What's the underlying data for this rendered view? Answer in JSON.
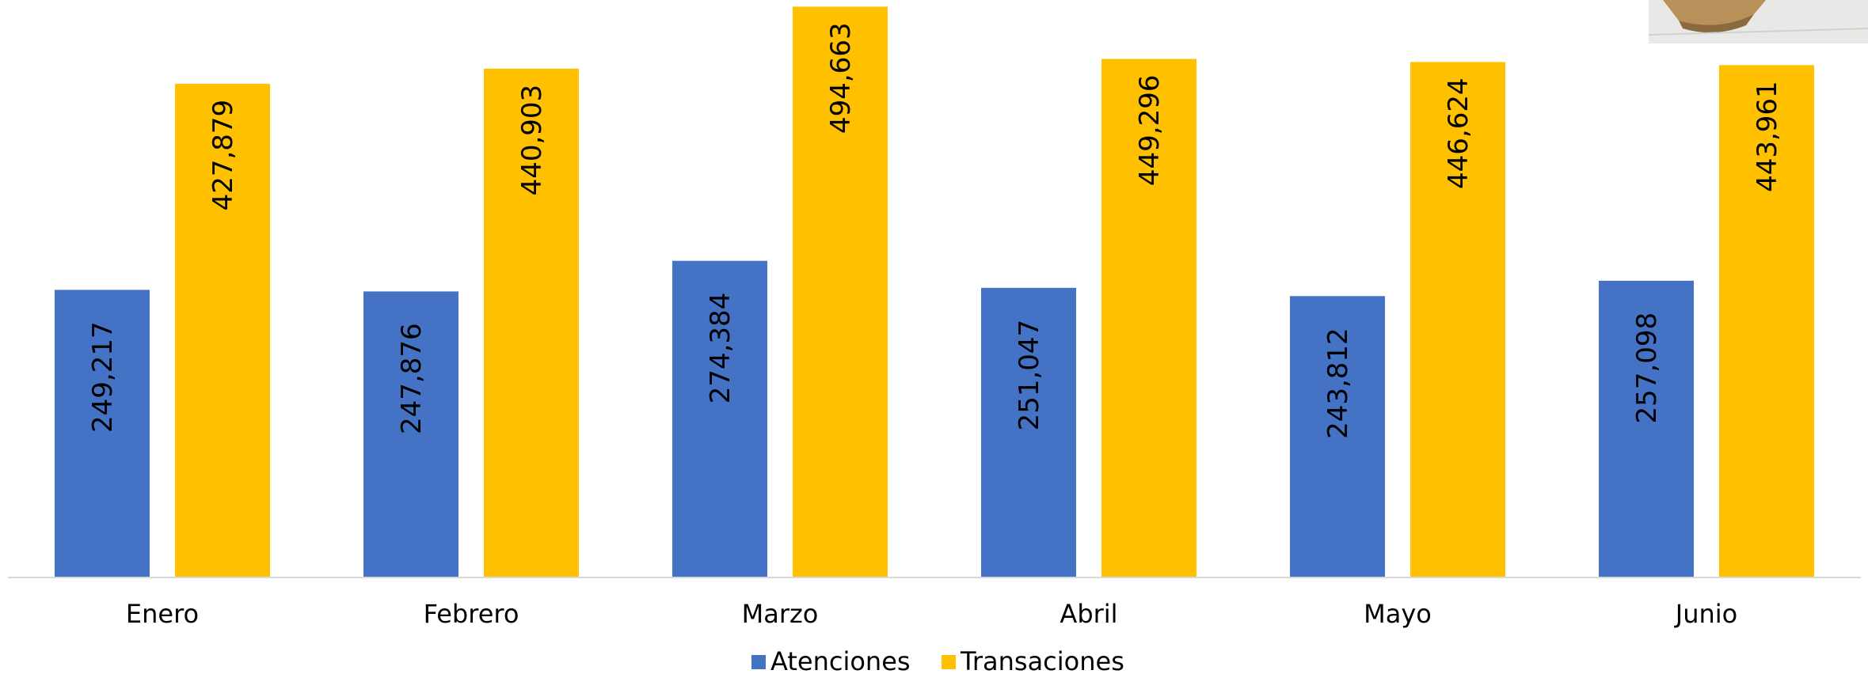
{
  "chart_data": {
    "type": "bar",
    "title": "",
    "xlabel": "",
    "ylabel": "",
    "categories": [
      "Enero",
      "Febrero",
      "Marzo",
      "Abril",
      "Mayo",
      "Junio"
    ],
    "series": [
      {
        "name": "Atenciones",
        "color": "#4472C4",
        "values": [
          249217,
          247876,
          274384,
          251047,
          243812,
          257098
        ],
        "labels": [
          "249,217",
          "247,876",
          "274,384",
          "251,047",
          "243,812",
          "257,098"
        ]
      },
      {
        "name": "Transaciones",
        "color": "#FFC000",
        "values": [
          427879,
          440903,
          494663,
          449296,
          446624,
          443961
        ],
        "labels": [
          "427,879",
          "440,903",
          "494,663",
          "449,296",
          "446,624",
          "443,961"
        ]
      }
    ],
    "ylim": [
      0,
      500000
    ],
    "grid": false,
    "legend": "bottom",
    "data_label_orientation": "vertical"
  }
}
